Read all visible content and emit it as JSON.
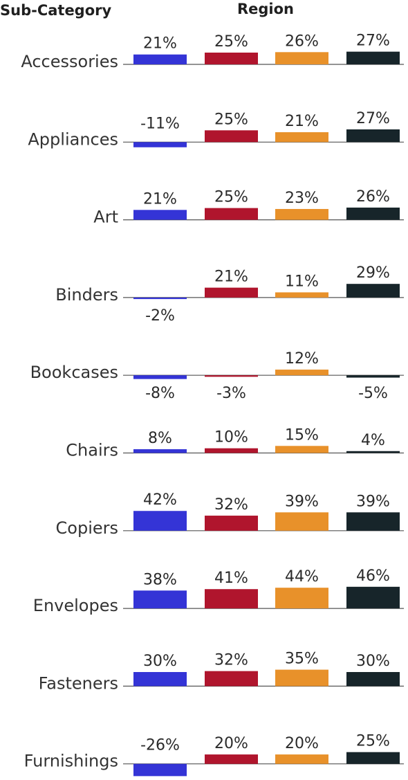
{
  "chart_data": {
    "type": "bar",
    "row_header": "Sub-Category",
    "column_header": "Region",
    "categories": [
      "Accessories",
      "Appliances",
      "Art",
      "Binders",
      "Bookcases",
      "Chairs",
      "Copiers",
      "Envelopes",
      "Fasteners",
      "Furnishings"
    ],
    "series": [
      {
        "color": "#3434d6",
        "values": [
          21,
          -11,
          21,
          -2,
          -8,
          8,
          42,
          38,
          30,
          -26
        ]
      },
      {
        "color": "#b0152d",
        "values": [
          25,
          25,
          25,
          21,
          -3,
          10,
          32,
          41,
          32,
          20
        ]
      },
      {
        "color": "#e8912a",
        "values": [
          26,
          21,
          23,
          11,
          12,
          15,
          39,
          44,
          35,
          20
        ]
      },
      {
        "color": "#17252a",
        "values": [
          27,
          27,
          26,
          29,
          -5,
          4,
          39,
          46,
          30,
          25
        ]
      }
    ],
    "value_suffix": "%",
    "grid": false,
    "legend": "none"
  }
}
